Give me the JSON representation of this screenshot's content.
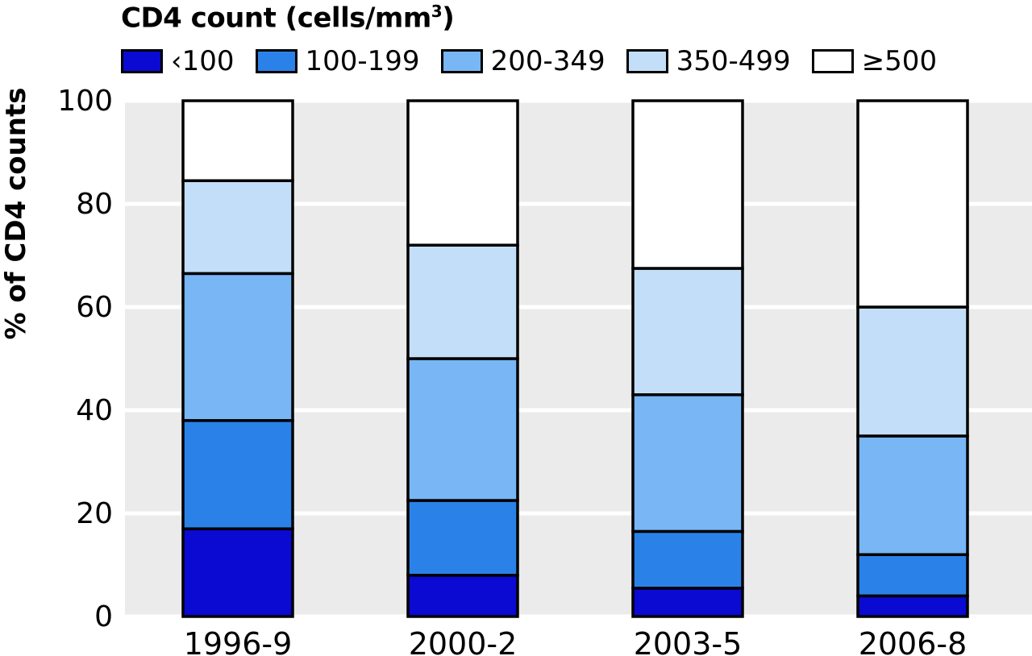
{
  "chart_data": {
    "type": "bar",
    "stacked": true,
    "legend_title_main": "CD4 count (cells/mm",
    "legend_title_sup": "3",
    "legend_title_close": ")",
    "ylabel": "% of CD4 counts",
    "xlabel": "",
    "ylim": [
      0,
      100
    ],
    "yticks": [
      "0",
      "20",
      "40",
      "60",
      "80",
      "100"
    ],
    "grid": true,
    "legend_position": "top",
    "categories": [
      "1996-9",
      "2000-2",
      "2003-5",
      "2006-8"
    ],
    "series": [
      {
        "name": "‹100",
        "color": "#0a0ad2",
        "values": [
          17,
          8,
          5.5,
          4
        ]
      },
      {
        "name": "100-199",
        "color": "#2a82e8",
        "values": [
          21,
          14.5,
          11,
          8
        ]
      },
      {
        "name": "200-349",
        "color": "#78b6f5",
        "values": [
          28.5,
          27.5,
          26.5,
          23
        ]
      },
      {
        "name": "350-499",
        "color": "#c3def8",
        "values": [
          18,
          22,
          24.5,
          25
        ]
      },
      {
        "name": "≥500",
        "color": "#ffffff",
        "values": [
          15.5,
          28,
          32.5,
          40
        ]
      }
    ],
    "plot_background": "#ebebeb",
    "gridline_color": "#ffffff"
  }
}
